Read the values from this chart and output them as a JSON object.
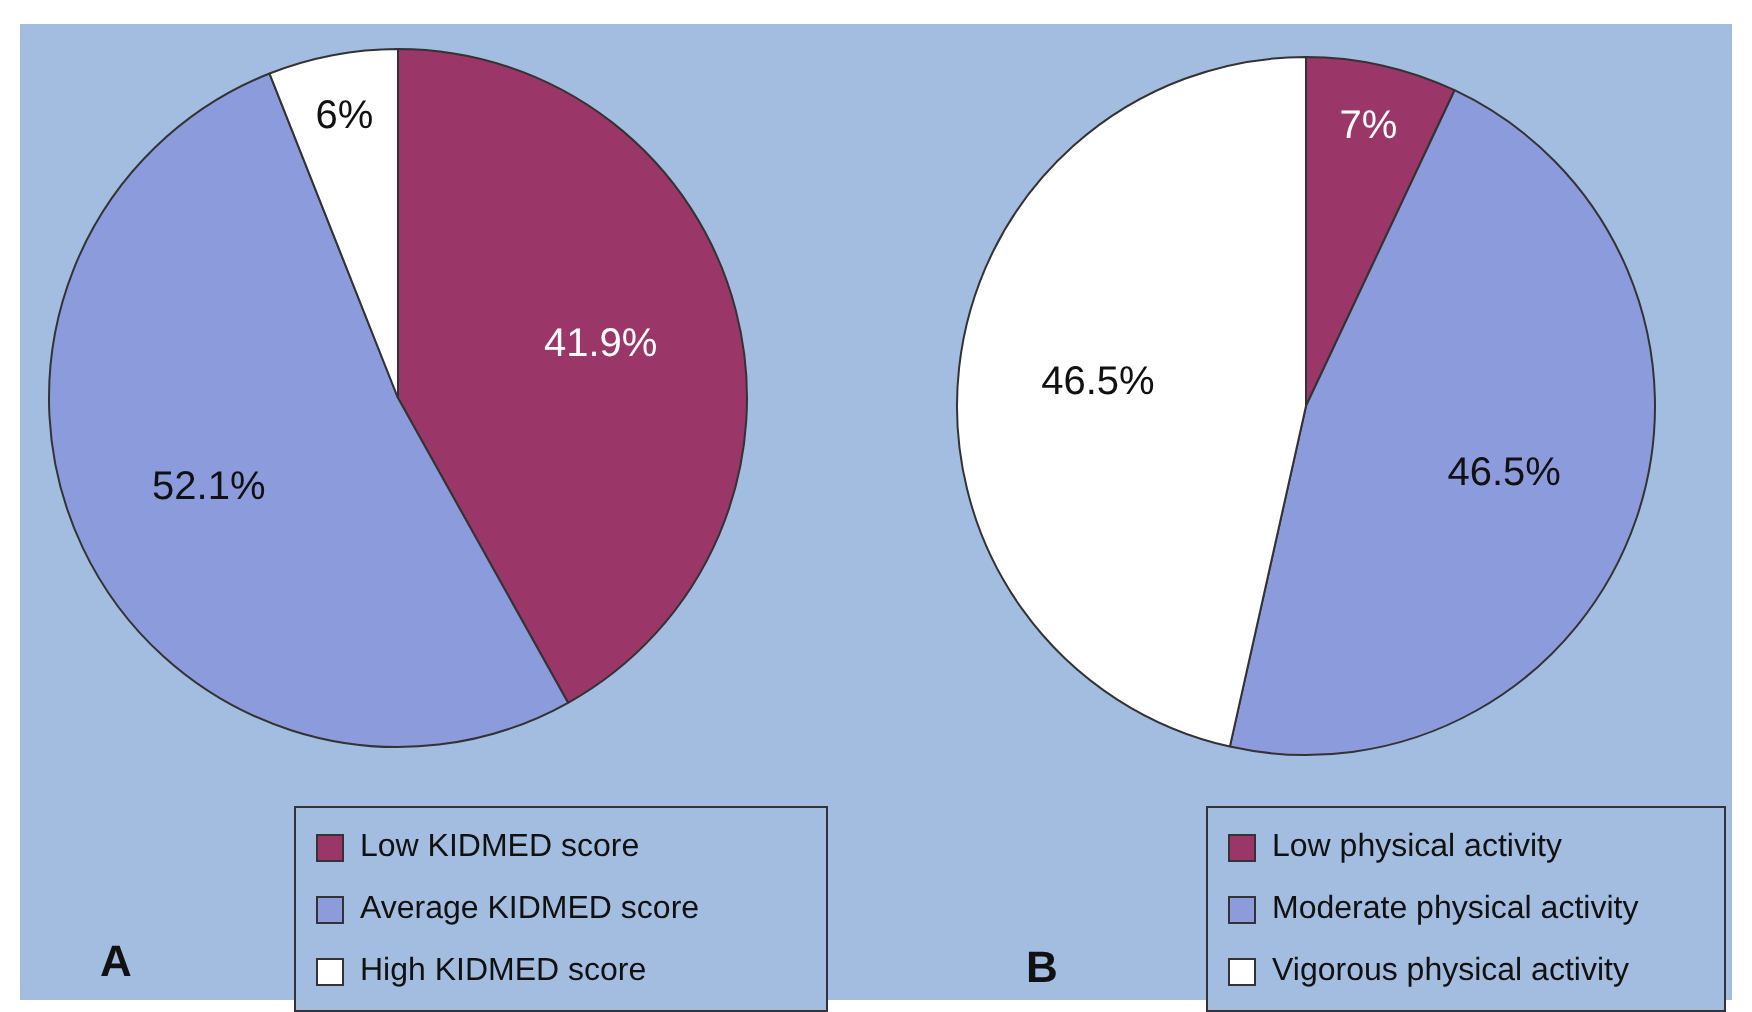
{
  "chart_data": [
    {
      "type": "pie",
      "categories": [
        "Low KIDMED score",
        "Average KIDMED score",
        "High KIDMED score"
      ],
      "values": [
        41.9,
        52.1,
        6
      ],
      "colors": [
        "#9b3668",
        "#8c9bdc",
        "#ffffff"
      ],
      "value_labels": [
        "41.9%",
        "52.1%",
        "6%"
      ],
      "legend": "bottom right",
      "annotations": [
        "A"
      ]
    },
    {
      "type": "pie",
      "categories": [
        "Low physical activity",
        "Moderate physical activity",
        "Vigorous physical activity"
      ],
      "values": [
        7,
        46.5,
        46.5
      ],
      "colors": [
        "#9b3668",
        "#8c9bdc",
        "#ffffff"
      ],
      "value_labels": [
        "7%",
        "46.5%",
        "46.5%"
      ],
      "legend": "bottom right",
      "annotations": [
        "B"
      ]
    }
  ]
}
